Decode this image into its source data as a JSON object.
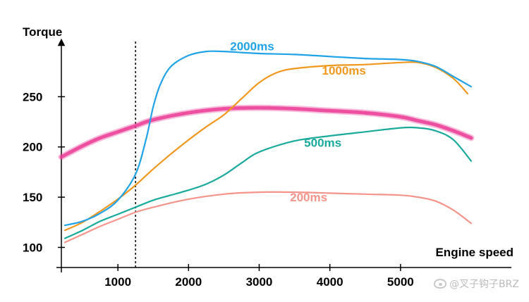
{
  "chart_data": {
    "type": "line",
    "xlabel": "Engine speed",
    "ylabel": "Torque",
    "xlim": [
      200,
      6000
    ],
    "ylim": [
      80,
      300
    ],
    "x_ticks": [
      1000,
      2000,
      3000,
      4000,
      5000
    ],
    "y_ticks": [
      100,
      150,
      200,
      250
    ],
    "marker_line_x": 1250,
    "series": [
      {
        "name": "2000ms",
        "color": "#1fa3e6",
        "x": [
          250,
          500,
          750,
          1000,
          1250,
          1400,
          1500,
          1600,
          1750,
          2000,
          2250,
          2500,
          2750,
          3000,
          3500,
          4000,
          4500,
          5000,
          5250,
          5500,
          5750,
          6000
        ],
        "y": [
          122,
          126,
          134,
          147,
          173,
          208,
          240,
          262,
          280,
          291,
          295,
          295,
          294,
          293,
          292,
          290,
          288,
          287,
          285,
          280,
          270,
          260
        ]
      },
      {
        "name": "1000ms",
        "color": "#f0981e",
        "x": [
          250,
          500,
          750,
          1000,
          1250,
          1500,
          1750,
          2000,
          2250,
          2500,
          2750,
          3000,
          3250,
          3500,
          4000,
          4500,
          5000,
          5250,
          5500,
          5750,
          5950
        ],
        "y": [
          117,
          125,
          136,
          148,
          162,
          178,
          193,
          207,
          220,
          232,
          248,
          264,
          274,
          278,
          281,
          282,
          284,
          284,
          279,
          268,
          253
        ]
      },
      {
        "name": "500ms",
        "color": "#1aaa9c",
        "x": [
          250,
          500,
          750,
          1000,
          1250,
          1500,
          1750,
          2000,
          2250,
          2500,
          2750,
          3000,
          3500,
          4000,
          4500,
          5000,
          5250,
          5500,
          5750,
          6000
        ],
        "y": [
          109,
          117,
          126,
          133,
          140,
          147,
          152,
          157,
          163,
          172,
          184,
          195,
          206,
          211,
          215,
          219,
          219,
          216,
          207,
          186
        ]
      },
      {
        "name": "200ms",
        "color": "#f5948a",
        "x": [
          250,
          500,
          750,
          1000,
          1250,
          1500,
          2000,
          2500,
          3000,
          3500,
          4000,
          4500,
          5000,
          5250,
          5500,
          5750,
          6000
        ],
        "y": [
          105,
          113,
          121,
          128,
          135,
          140,
          148,
          153,
          155,
          155,
          154,
          153,
          152,
          150,
          146,
          137,
          124
        ]
      },
      {
        "name": "",
        "color": "#ec3d97",
        "brush": true,
        "x": [
          200,
          500,
          750,
          1000,
          1250,
          1500,
          2000,
          2500,
          3000,
          3500,
          4000,
          4500,
          5000,
          5250,
          5500,
          5750,
          6000
        ],
        "y": [
          190,
          201,
          209,
          215,
          221,
          227,
          234,
          238,
          239,
          238,
          236,
          234,
          230,
          226,
          222,
          216,
          209
        ]
      }
    ],
    "series_label_positions_data": [
      {
        "text": "2000ms",
        "x": 2900,
        "y": 296
      },
      {
        "text": "1000ms",
        "x": 4200,
        "y": 272
      },
      {
        "text": "500ms",
        "x": 3900,
        "y": 200
      },
      {
        "text": "200ms",
        "x": 3700,
        "y": 146
      }
    ]
  },
  "watermark": "@叉子钩子BRZ"
}
